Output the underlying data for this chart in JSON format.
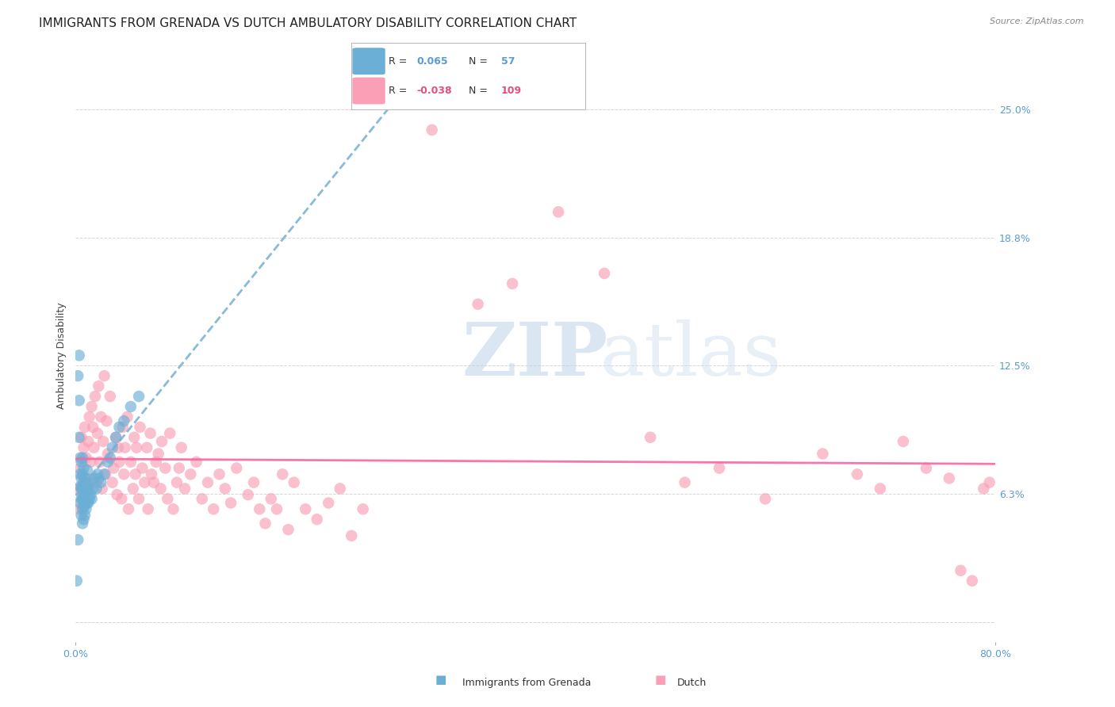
{
  "title": "IMMIGRANTS FROM GRENADA VS DUTCH AMBULATORY DISABILITY CORRELATION CHART",
  "source": "Source: ZipAtlas.com",
  "ylabel": "Ambulatory Disability",
  "xlim": [
    0.0,
    0.8
  ],
  "ylim": [
    -0.01,
    0.27
  ],
  "color_blue": "#6baed6",
  "color_pink": "#fa9fb5",
  "line_color_blue": "#74afd3",
  "line_color_pink": "#f768a1",
  "watermark_zip": "ZIP",
  "watermark_atlas": "atlas",
  "background_color": "#ffffff",
  "grid_color": "#cccccc",
  "blue_scatter_x": [
    0.001,
    0.002,
    0.002,
    0.003,
    0.003,
    0.003,
    0.004,
    0.004,
    0.004,
    0.004,
    0.005,
    0.005,
    0.005,
    0.005,
    0.005,
    0.006,
    0.006,
    0.006,
    0.006,
    0.006,
    0.006,
    0.007,
    0.007,
    0.007,
    0.007,
    0.007,
    0.008,
    0.008,
    0.008,
    0.008,
    0.009,
    0.009,
    0.009,
    0.01,
    0.01,
    0.01,
    0.011,
    0.011,
    0.012,
    0.012,
    0.013,
    0.014,
    0.015,
    0.016,
    0.018,
    0.019,
    0.02,
    0.022,
    0.025,
    0.028,
    0.03,
    0.032,
    0.035,
    0.038,
    0.042,
    0.048,
    0.055
  ],
  "blue_scatter_y": [
    0.02,
    0.04,
    0.12,
    0.09,
    0.108,
    0.13,
    0.058,
    0.066,
    0.072,
    0.08,
    0.052,
    0.06,
    0.065,
    0.07,
    0.078,
    0.048,
    0.055,
    0.06,
    0.066,
    0.072,
    0.08,
    0.05,
    0.056,
    0.062,
    0.068,
    0.075,
    0.052,
    0.058,
    0.064,
    0.07,
    0.055,
    0.06,
    0.068,
    0.058,
    0.064,
    0.074,
    0.058,
    0.065,
    0.06,
    0.068,
    0.062,
    0.06,
    0.065,
    0.07,
    0.065,
    0.072,
    0.07,
    0.068,
    0.072,
    0.078,
    0.08,
    0.085,
    0.09,
    0.095,
    0.098,
    0.105,
    0.11
  ],
  "pink_scatter_x": [
    0.002,
    0.003,
    0.004,
    0.005,
    0.006,
    0.007,
    0.008,
    0.009,
    0.01,
    0.011,
    0.012,
    0.013,
    0.014,
    0.015,
    0.016,
    0.017,
    0.018,
    0.019,
    0.02,
    0.021,
    0.022,
    0.023,
    0.024,
    0.025,
    0.026,
    0.027,
    0.028,
    0.03,
    0.032,
    0.033,
    0.035,
    0.036,
    0.037,
    0.038,
    0.04,
    0.041,
    0.042,
    0.043,
    0.045,
    0.046,
    0.048,
    0.05,
    0.051,
    0.052,
    0.053,
    0.055,
    0.056,
    0.058,
    0.06,
    0.062,
    0.063,
    0.065,
    0.066,
    0.068,
    0.07,
    0.072,
    0.074,
    0.075,
    0.078,
    0.08,
    0.082,
    0.085,
    0.088,
    0.09,
    0.092,
    0.095,
    0.1,
    0.105,
    0.11,
    0.115,
    0.12,
    0.125,
    0.13,
    0.135,
    0.14,
    0.15,
    0.155,
    0.16,
    0.165,
    0.17,
    0.175,
    0.18,
    0.185,
    0.19,
    0.2,
    0.21,
    0.22,
    0.23,
    0.24,
    0.25,
    0.31,
    0.35,
    0.38,
    0.42,
    0.46,
    0.5,
    0.53,
    0.56,
    0.6,
    0.65,
    0.68,
    0.7,
    0.72,
    0.74,
    0.76,
    0.77,
    0.78,
    0.79,
    0.795
  ],
  "pink_scatter_y": [
    0.065,
    0.055,
    0.075,
    0.09,
    0.06,
    0.085,
    0.095,
    0.08,
    0.07,
    0.088,
    0.1,
    0.078,
    0.105,
    0.095,
    0.085,
    0.11,
    0.068,
    0.092,
    0.115,
    0.078,
    0.1,
    0.065,
    0.088,
    0.12,
    0.072,
    0.098,
    0.082,
    0.11,
    0.068,
    0.075,
    0.09,
    0.062,
    0.085,
    0.078,
    0.06,
    0.095,
    0.072,
    0.085,
    0.1,
    0.055,
    0.078,
    0.065,
    0.09,
    0.072,
    0.085,
    0.06,
    0.095,
    0.075,
    0.068,
    0.085,
    0.055,
    0.092,
    0.072,
    0.068,
    0.078,
    0.082,
    0.065,
    0.088,
    0.075,
    0.06,
    0.092,
    0.055,
    0.068,
    0.075,
    0.085,
    0.065,
    0.072,
    0.078,
    0.06,
    0.068,
    0.055,
    0.072,
    0.065,
    0.058,
    0.075,
    0.062,
    0.068,
    0.055,
    0.048,
    0.06,
    0.055,
    0.072,
    0.045,
    0.068,
    0.055,
    0.05,
    0.058,
    0.065,
    0.042,
    0.055,
    0.24,
    0.155,
    0.165,
    0.2,
    0.17,
    0.09,
    0.068,
    0.075,
    0.06,
    0.082,
    0.072,
    0.065,
    0.088,
    0.075,
    0.07,
    0.025,
    0.02,
    0.065,
    0.068
  ],
  "title_fontsize": 11,
  "axis_label_fontsize": 9,
  "tick_fontsize": 9
}
